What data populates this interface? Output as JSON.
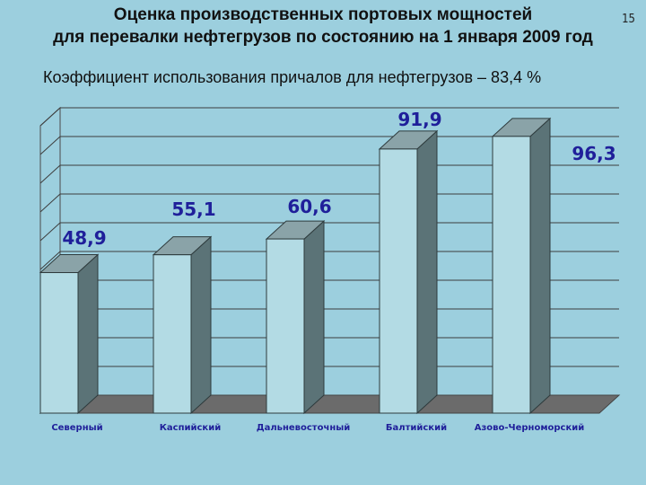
{
  "slide": {
    "title_line1": "Оценка производственных портовых мощностей",
    "title_line2": "для перевалки нефтегрузов по состоянию  на 1 января 2009 год",
    "subtitle": "Коэффициент использования причалов для нефтегрузов – 83,4 %",
    "page_number": "15"
  },
  "chart_data": {
    "type": "bar",
    "title": "Коэффициент использования причалов для нефтегрузов – 83,4 %",
    "categories": [
      "Северный",
      "Каспийский",
      "Дальневосточный",
      "Балтийский",
      "Азово-Черноморский"
    ],
    "values": [
      48.9,
      55.1,
      60.6,
      91.9,
      96.3
    ],
    "value_labels": [
      "48,9",
      "55,1",
      "60,6",
      "91,9",
      "96,3"
    ],
    "ylim": [
      0,
      100
    ],
    "grid": true,
    "xlabel": "",
    "ylabel": ""
  },
  "colors": {
    "background": "#9ccfde",
    "bar_front": "#b3dbe4",
    "bar_side": "#5b7377",
    "bar_top": "#8aa3a8",
    "floor": "#6b6b6b",
    "label": "#1f1f9a"
  }
}
